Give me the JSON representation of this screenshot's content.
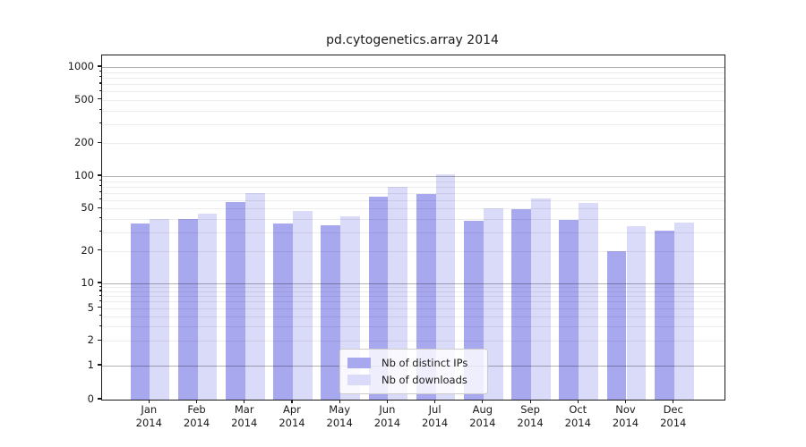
{
  "chart_data": {
    "type": "bar",
    "title": "pd.cytogenetics.array 2014",
    "categories": [
      "Jan",
      "Feb",
      "Mar",
      "Apr",
      "May",
      "Jun",
      "Jul",
      "Aug",
      "Sep",
      "Oct",
      "Nov",
      "Dec"
    ],
    "category_year_line": "2014",
    "series": [
      {
        "name": "Nb of distinct IPs",
        "color": "#a8a8ef",
        "values": [
          36,
          40,
          57,
          36,
          35,
          64,
          68,
          38,
          49,
          39,
          20,
          31
        ]
      },
      {
        "name": "Nb of downloads",
        "color": "#dadaf9",
        "values": [
          40,
          45,
          70,
          47,
          42,
          79,
          103,
          50,
          62,
          56,
          34,
          37
        ]
      }
    ],
    "y_axis": {
      "scale": "log-with-zero",
      "ticks": [
        0,
        1,
        2,
        5,
        10,
        20,
        50,
        100,
        200,
        500,
        1000
      ],
      "range": [
        0,
        1000
      ]
    },
    "x_axis": {
      "label_lines": 2
    },
    "grid": "horizontal major and minor, drawn over bars",
    "legend_position": "inside bottom-center",
    "colors": {
      "background": "#ffffff",
      "spine": "#1a1a1a",
      "text": "#1a1a1a",
      "major_grid": "#b3b3b3",
      "minor_grid": "#e8e8e8",
      "legend_border": "#cccccc"
    }
  }
}
